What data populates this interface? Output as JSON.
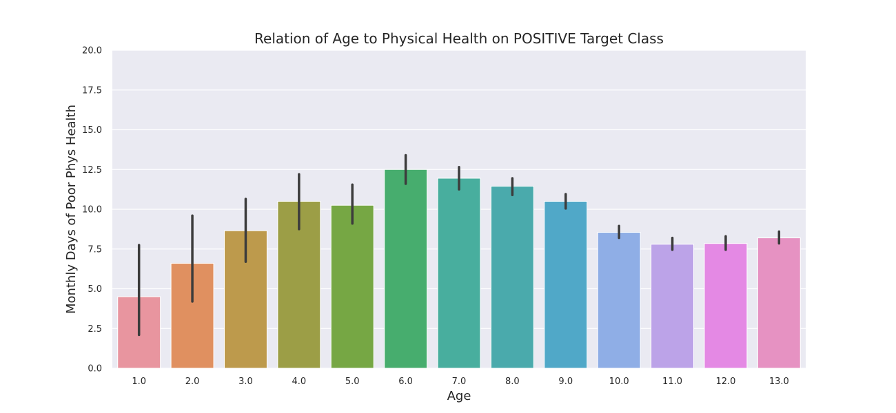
{
  "chart_data": {
    "type": "bar",
    "title": "Relation of Age to Physical Health on POSITIVE Target Class",
    "xlabel": "Age",
    "ylabel": "Monthly Days of Poor Phys Health",
    "ylim": [
      0,
      20
    ],
    "yticks": [
      "0.0",
      "2.5",
      "5.0",
      "7.5",
      "10.0",
      "12.5",
      "15.0",
      "17.5",
      "20.0"
    ],
    "grid": true,
    "categories": [
      "1.0",
      "2.0",
      "3.0",
      "4.0",
      "5.0",
      "6.0",
      "7.0",
      "8.0",
      "9.0",
      "10.0",
      "11.0",
      "12.0",
      "13.0"
    ],
    "values": [
      4.5,
      6.6,
      8.65,
      10.5,
      10.25,
      12.5,
      11.95,
      11.45,
      10.5,
      8.55,
      7.8,
      7.85,
      8.2
    ],
    "error_low": [
      2.1,
      4.2,
      6.7,
      8.75,
      9.1,
      11.6,
      11.25,
      10.9,
      10.05,
      8.2,
      7.45,
      7.45,
      7.85
    ],
    "error_high": [
      7.75,
      9.6,
      10.65,
      12.2,
      11.55,
      13.4,
      12.65,
      11.95,
      10.95,
      8.95,
      8.2,
      8.3,
      8.6
    ],
    "colors": [
      "#e8959f",
      "#e09060",
      "#bd9a4c",
      "#9c9e46",
      "#76a744",
      "#47ad6e",
      "#48ae9e",
      "#4aaaac",
      "#50a8c8",
      "#8faee6",
      "#bca3e8",
      "#e489e4",
      "#e692c2"
    ],
    "background": "#eaeaf2",
    "errorbar_color": "#3c3c3c"
  }
}
